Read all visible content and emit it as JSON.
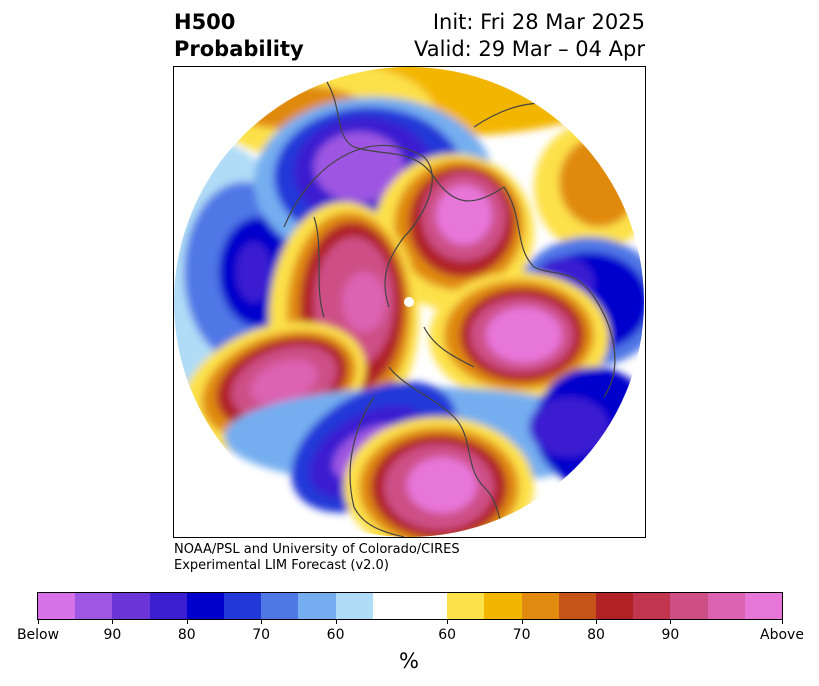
{
  "header": {
    "title_line1": "H500",
    "title_line2": "Probability",
    "init": "Init: Fri 28 Mar 2025",
    "valid": "Valid: 29 Mar – 04 Apr"
  },
  "credit": {
    "line1": "NOAA/PSL and University of Colorado/CIRES",
    "line2": "Experimental LIM Forecast (v2.0)"
  },
  "colorbar": {
    "unit": "%",
    "colors": [
      "#d671e8",
      "#9e57e2",
      "#6b35d8",
      "#3a1ed0",
      "#0000cc",
      "#2338d8",
      "#4f77e6",
      "#74aef0",
      "#b0dcf7",
      "#ffffff",
      "#ffffff",
      "#fde14a",
      "#f3b600",
      "#e08a0f",
      "#c65317",
      "#b02225",
      "#c2354f",
      "#cd4f86",
      "#dc62b2",
      "#e776d9"
    ],
    "tick_labels": [
      "Below",
      "90",
      "80",
      "70",
      "60",
      "60",
      "70",
      "80",
      "90",
      "Above"
    ]
  },
  "map": {
    "projection": "north-polar-stereographic",
    "content": "500 hPa height anomaly probability forecast with coastlines and political boundaries"
  }
}
